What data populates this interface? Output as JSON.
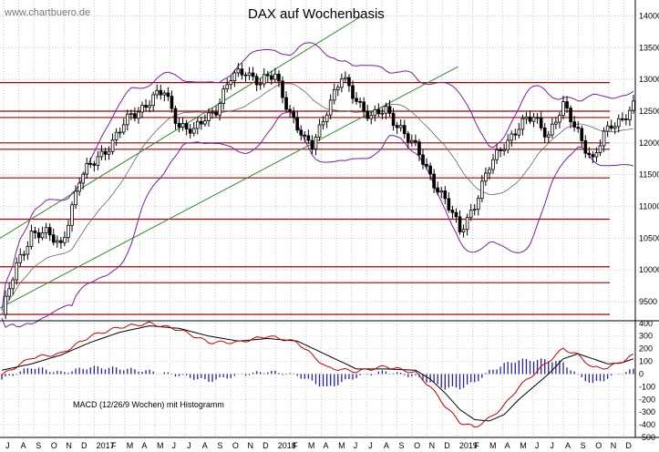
{
  "watermark": "www.chartbuero.de",
  "chart_data": [
    {
      "type": "candlestick",
      "title": "DAX auf Wochenbasis",
      "ylim": [
        9200,
        14250
      ],
      "y_ticks": [
        9500,
        10000,
        10500,
        11000,
        11500,
        12000,
        12500,
        13000,
        13500,
        14000
      ],
      "x_months": [
        "J",
        "A",
        "S",
        "O",
        "N",
        "D",
        "2017",
        "F",
        "M",
        "A",
        "M",
        "J",
        "J",
        "A",
        "S",
        "O",
        "N",
        "D",
        "2018",
        "F",
        "M",
        "A",
        "M",
        "J",
        "J",
        "A",
        "S",
        "O",
        "N",
        "D",
        "2019",
        "F",
        "M",
        "A",
        "M",
        "J",
        "J",
        "A",
        "S",
        "O",
        "N",
        "D"
      ],
      "horizontal_levels": [
        12950,
        12500,
        12400,
        12000,
        11900,
        11450,
        10800,
        10050,
        9800,
        9300
      ],
      "price_anchors": {
        "weeks": [
          0,
          4,
          8,
          12,
          16,
          21,
          26,
          30,
          35,
          40,
          44,
          48,
          52,
          55,
          58,
          62,
          66,
          70,
          74,
          78,
          82,
          84,
          88,
          92,
          96,
          100,
          104,
          108,
          112,
          116,
          120,
          124,
          128,
          132,
          136,
          140,
          144,
          148,
          152,
          156,
          160,
          163,
          165,
          168,
          171
        ],
        "close": [
          9300,
          10050,
          10600,
          10550,
          10400,
          11400,
          11800,
          12000,
          12450,
          12650,
          12800,
          12300,
          12150,
          12400,
          12550,
          13000,
          13150,
          12950,
          13050,
          12500,
          12000,
          11950,
          12550,
          13000,
          12700,
          12400,
          12500,
          12250,
          11900,
          11500,
          11100,
          10600,
          11050,
          11600,
          12000,
          12250,
          12400,
          12150,
          12550,
          12200,
          11700,
          12100,
          12300,
          12400,
          12550
        ]
      },
      "channel_lines": [
        {
          "from": [
            0,
            10500
          ],
          "to": [
            98,
            14000
          ]
        },
        {
          "from": [
            0,
            9400
          ],
          "to": [
            124,
            13200
          ]
        }
      ],
      "bollinger": {
        "upper_color": "#7a1fa0",
        "lower_color": "#7a1fa0",
        "mid_color": "#000000"
      },
      "colors": {
        "level_line": "#a00000",
        "channel": "#2e8b2e",
        "band": "#7a1fa0",
        "candle": "#000000"
      }
    },
    {
      "type": "line",
      "label": "MACD (12/26/9 Wochen) mit Histogramm",
      "ylim": [
        -500,
        420
      ],
      "y_ticks": [
        400,
        300,
        200,
        100,
        0,
        -100,
        -200,
        -300,
        -400,
        -500
      ],
      "y_tick_labels": [
        "400",
        "300",
        "200",
        "100",
        "0",
        "-100",
        "-200",
        "-300",
        "-400",
        "-500"
      ],
      "macd_anchors": {
        "weeks": [
          0,
          8,
          16,
          24,
          32,
          40,
          48,
          56,
          64,
          72,
          80,
          88,
          96,
          104,
          112,
          116,
          120,
          124,
          128,
          132,
          136,
          140,
          144,
          148,
          152,
          156,
          160,
          164,
          168,
          171
        ],
        "macd": [
          -10,
          130,
          160,
          300,
          370,
          400,
          350,
          250,
          250,
          300,
          250,
          50,
          20,
          60,
          10,
          -100,
          -250,
          -380,
          -420,
          -350,
          -250,
          -100,
          0,
          100,
          200,
          150,
          50,
          50,
          100,
          150
        ],
        "signal": [
          30,
          80,
          150,
          250,
          330,
          380,
          360,
          300,
          260,
          280,
          260,
          150,
          40,
          40,
          30,
          -40,
          -150,
          -280,
          -360,
          -370,
          -320,
          -200,
          -100,
          0,
          120,
          160,
          120,
          80,
          90,
          120
        ]
      },
      "colors": {
        "macd": "#cc0000",
        "signal": "#000000",
        "hist": "#2020a0"
      }
    }
  ]
}
